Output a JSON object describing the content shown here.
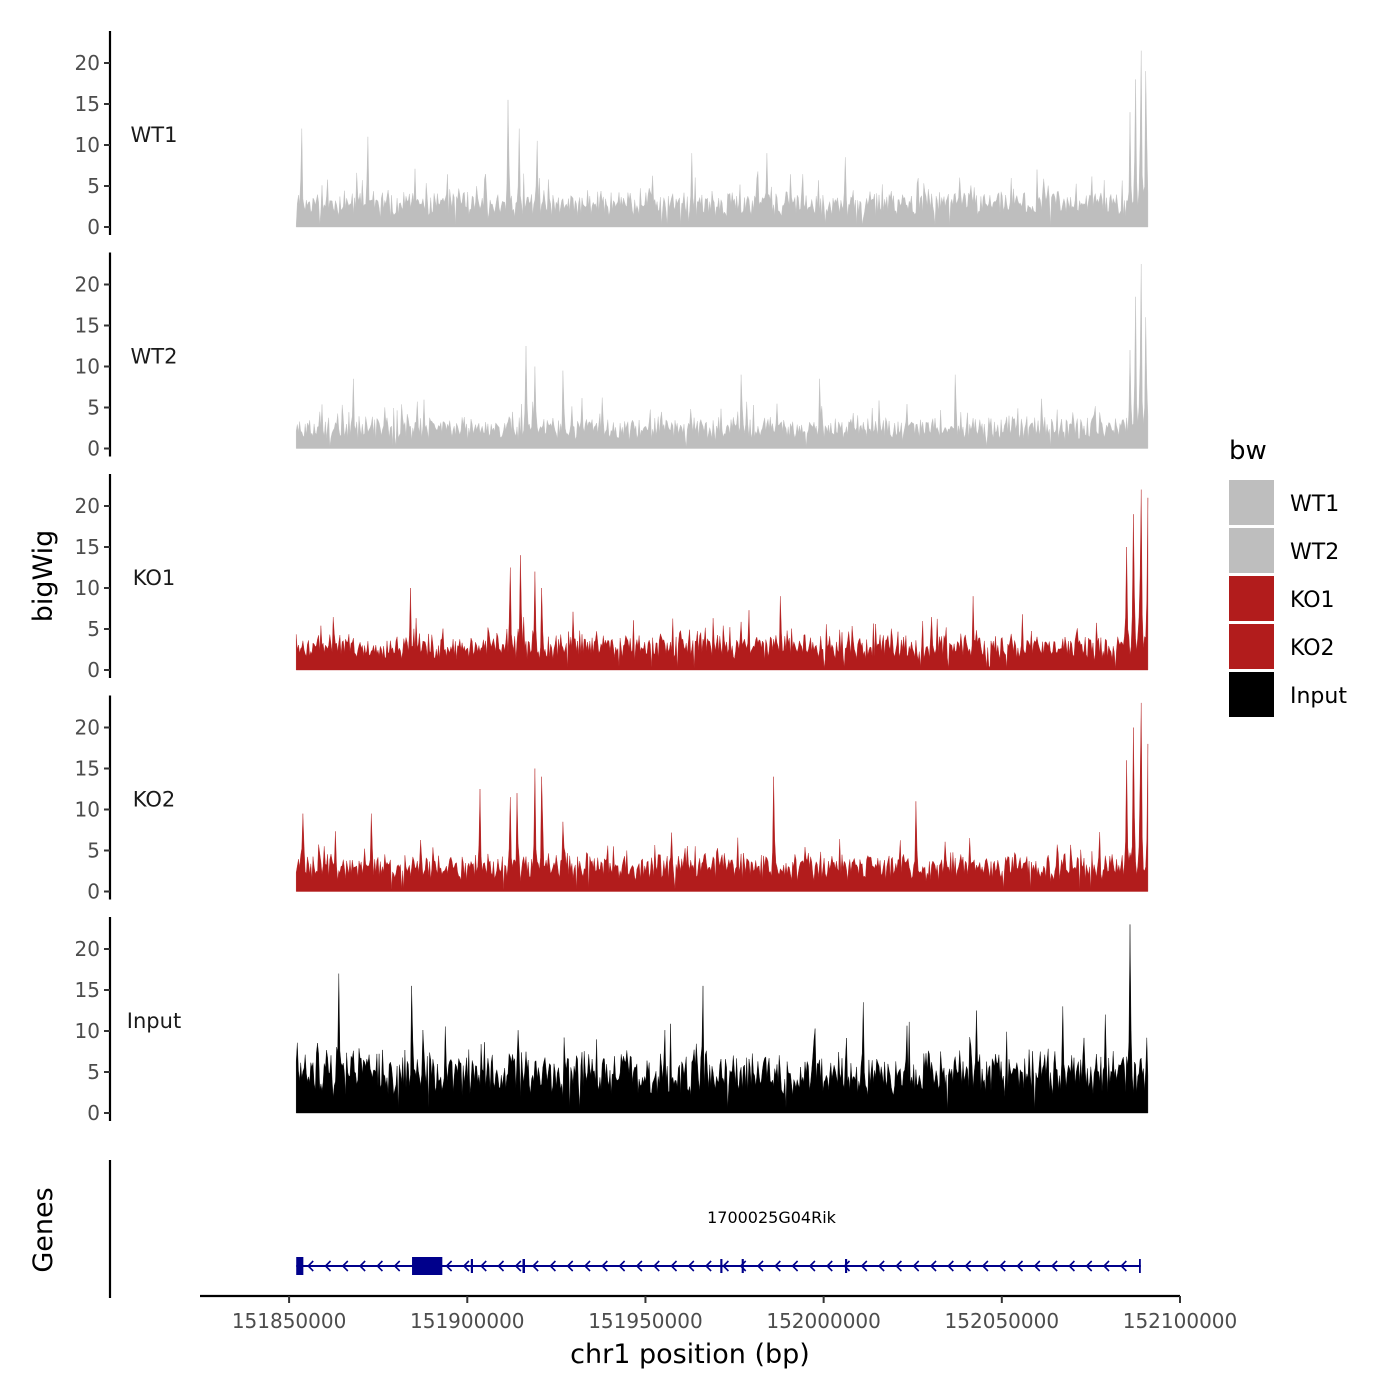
{
  "chart_data": {
    "type": "area",
    "subtype": "genome-browser-tracks",
    "chromosome": "chr1",
    "xlabel": "chr1 position (bp)",
    "ylabel": "bigWig",
    "genes_label": "Genes",
    "xlim": [
      151825000,
      152100000
    ],
    "x_ticks": [
      151850000,
      151900000,
      151950000,
      152000000,
      152050000,
      152100000
    ],
    "x_tick_labels": [
      "151850000",
      "151900000",
      "151950000",
      "152000000",
      "152050000",
      "152100000"
    ],
    "ylim": [
      0,
      24
    ],
    "y_ticks": [
      0,
      5,
      10,
      15,
      20
    ],
    "y_tick_labels": [
      "0",
      "5",
      "10",
      "15",
      "20"
    ],
    "data_range": [
      151852000,
      152091000
    ],
    "legend": {
      "title": "bw",
      "entries": [
        {
          "label": "WT1",
          "color": "#bebebe"
        },
        {
          "label": "WT2",
          "color": "#bebebe"
        },
        {
          "label": "KO1",
          "color": "#b21c1c"
        },
        {
          "label": "KO2",
          "color": "#b21c1c"
        },
        {
          "label": "Input",
          "color": "#000000"
        }
      ]
    },
    "series": [
      {
        "name": "WT1",
        "color": "#bebebe",
        "baseline_mean": 2.8,
        "noise": 3.2,
        "peaks": [
          {
            "x": 151853500,
            "y": 12
          },
          {
            "x": 151872000,
            "y": 11
          },
          {
            "x": 151911500,
            "y": 15.5
          },
          {
            "x": 151914500,
            "y": 12
          },
          {
            "x": 151919500,
            "y": 10.5
          },
          {
            "x": 151963000,
            "y": 9
          },
          {
            "x": 151984000,
            "y": 9
          },
          {
            "x": 152006000,
            "y": 8.5
          },
          {
            "x": 152089000,
            "y": 21.5
          },
          {
            "x": 152087500,
            "y": 18
          },
          {
            "x": 152090500,
            "y": 19
          },
          {
            "x": 152086000,
            "y": 14
          }
        ]
      },
      {
        "name": "WT2",
        "color": "#bebebe",
        "baseline_mean": 2.4,
        "noise": 2.8,
        "peaks": [
          {
            "x": 151868000,
            "y": 8.5
          },
          {
            "x": 151916500,
            "y": 12.5
          },
          {
            "x": 151919000,
            "y": 10
          },
          {
            "x": 151927000,
            "y": 9.5
          },
          {
            "x": 151977000,
            "y": 9
          },
          {
            "x": 151999000,
            "y": 8.5
          },
          {
            "x": 152037000,
            "y": 9
          },
          {
            "x": 152089000,
            "y": 22.5
          },
          {
            "x": 152087500,
            "y": 18.5
          },
          {
            "x": 152090500,
            "y": 16
          },
          {
            "x": 152086000,
            "y": 12
          }
        ]
      },
      {
        "name": "KO1",
        "color": "#b21c1c",
        "baseline_mean": 2.8,
        "noise": 3.4,
        "peaks": [
          {
            "x": 151884000,
            "y": 10
          },
          {
            "x": 151912000,
            "y": 12.5
          },
          {
            "x": 151915000,
            "y": 14
          },
          {
            "x": 151919000,
            "y": 12
          },
          {
            "x": 151921000,
            "y": 10
          },
          {
            "x": 151988000,
            "y": 9
          },
          {
            "x": 152042000,
            "y": 9
          },
          {
            "x": 152089000,
            "y": 22
          },
          {
            "x": 152087000,
            "y": 19
          },
          {
            "x": 152091000,
            "y": 21
          },
          {
            "x": 152085000,
            "y": 15
          }
        ]
      },
      {
        "name": "KO2",
        "color": "#b21c1c",
        "baseline_mean": 3.0,
        "noise": 3.3,
        "peaks": [
          {
            "x": 151854000,
            "y": 9.5
          },
          {
            "x": 151873000,
            "y": 9.5
          },
          {
            "x": 151903500,
            "y": 12.5
          },
          {
            "x": 151912000,
            "y": 11.5
          },
          {
            "x": 151914000,
            "y": 12
          },
          {
            "x": 151919000,
            "y": 15
          },
          {
            "x": 151921000,
            "y": 14
          },
          {
            "x": 151927000,
            "y": 8.5
          },
          {
            "x": 151986000,
            "y": 14
          },
          {
            "x": 152026000,
            "y": 11
          },
          {
            "x": 152089000,
            "y": 23
          },
          {
            "x": 152087000,
            "y": 20
          },
          {
            "x": 152091000,
            "y": 18
          },
          {
            "x": 152085000,
            "y": 16
          }
        ]
      },
      {
        "name": "Input",
        "color": "#000000",
        "baseline_mean": 5.0,
        "noise": 4.8,
        "peaks": [
          {
            "x": 151864000,
            "y": 17
          },
          {
            "x": 151884500,
            "y": 15.5
          },
          {
            "x": 151966000,
            "y": 15.5
          },
          {
            "x": 152011000,
            "y": 13.5
          },
          {
            "x": 152043000,
            "y": 12.5
          },
          {
            "x": 152067000,
            "y": 13
          },
          {
            "x": 152086000,
            "y": 23
          },
          {
            "x": 152079000,
            "y": 12
          }
        ]
      }
    ],
    "genes": [
      {
        "name": "1700025G04Rik",
        "start": 151852000,
        "end": 152089000,
        "strand": "-",
        "exons": [
          [
            151852000,
            151854000
          ],
          [
            151884500,
            151893000
          ],
          [
            151901000,
            151901600
          ],
          [
            151915500,
            151916200
          ],
          [
            151971000,
            151971600
          ],
          [
            151977000,
            151977600
          ],
          [
            152006000,
            152006600
          ],
          [
            152088500,
            152089000
          ]
        ]
      }
    ]
  }
}
